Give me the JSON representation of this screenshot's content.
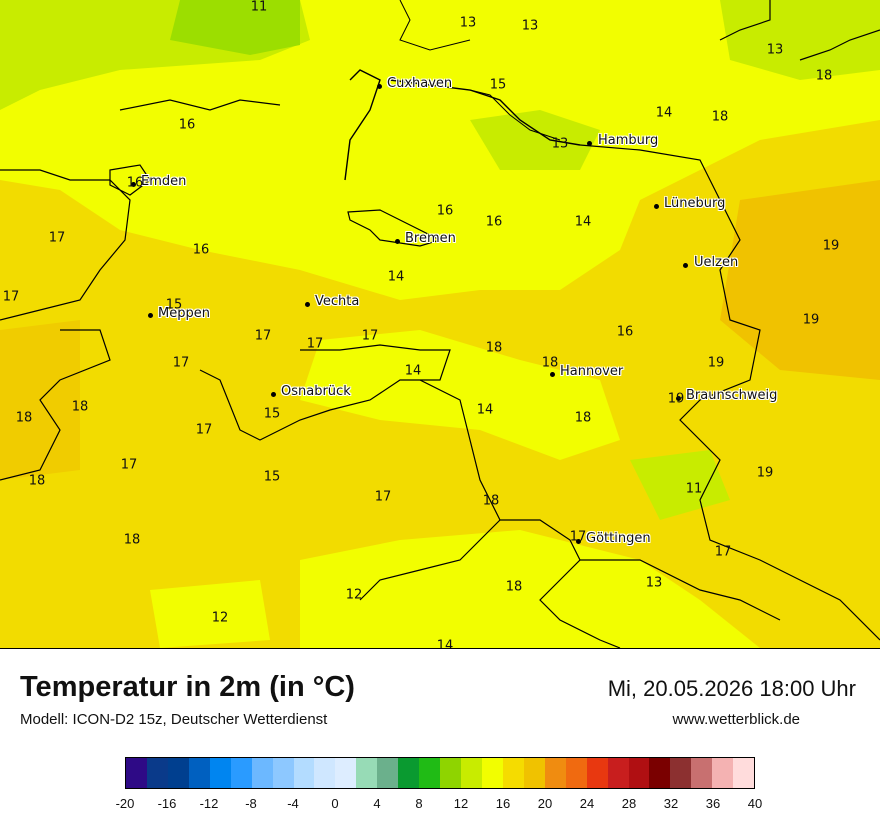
{
  "title": "Temperatur in 2m (in °C)",
  "model": "Modell: ICON-D2 15z, Deutscher Wetterdienst",
  "datetime": "Mi, 20.05.2026 18:00 Uhr",
  "website": "www.wetterblick.de",
  "cities": [
    {
      "name": "Cuxhaven"
    },
    {
      "name": "Hamburg"
    },
    {
      "name": "Emden"
    },
    {
      "name": "Lüneburg"
    },
    {
      "name": "Bremen"
    },
    {
      "name": "Uelzen"
    },
    {
      "name": "Vechta"
    },
    {
      "name": "Meppen"
    },
    {
      "name": "Hannover"
    },
    {
      "name": "Osnabrück"
    },
    {
      "name": "Braunschweig"
    },
    {
      "name": "Göttingen"
    }
  ],
  "temperature_labels": [
    "11",
    "13",
    "13",
    "13",
    "18",
    "15",
    "14",
    "18",
    "16",
    "13",
    "16",
    "16",
    "14",
    "17",
    "16",
    "19",
    "17",
    "15",
    "14",
    "16",
    "17",
    "17",
    "16",
    "19",
    "17",
    "18",
    "14",
    "18",
    "19",
    "18",
    "14",
    "18",
    "15",
    "17",
    "18",
    "19",
    "17",
    "17",
    "15",
    "18",
    "11",
    "19",
    "18",
    "17",
    "17",
    "18",
    "12",
    "13",
    "17",
    "12",
    "18",
    "14"
  ],
  "colorbar": {
    "ticks": [
      "-20",
      "-16",
      "-12",
      "-8",
      "-4",
      "0",
      "4",
      "8",
      "12",
      "16",
      "20",
      "24",
      "28",
      "32",
      "36",
      "40"
    ],
    "colors": [
      "#2e0a86",
      "#0a3a8a",
      "#003f8f",
      "#0060c0",
      "#0085f0",
      "#2a9bff",
      "#6cb8ff",
      "#8dc8ff",
      "#b3dcff",
      "#cfe7ff",
      "#ddedff",
      "#97dbb6",
      "#6bb08c",
      "#0a9a30",
      "#20bb15",
      "#8fd400",
      "#c8ec00",
      "#f2fe00",
      "#f5dc00",
      "#f0c200",
      "#f08c10",
      "#f06a10",
      "#e83810",
      "#c81e1e",
      "#b00f12",
      "#7a0000",
      "#8c3030",
      "#c87070",
      "#f4b2b2",
      "#ffdcdc"
    ]
  }
}
